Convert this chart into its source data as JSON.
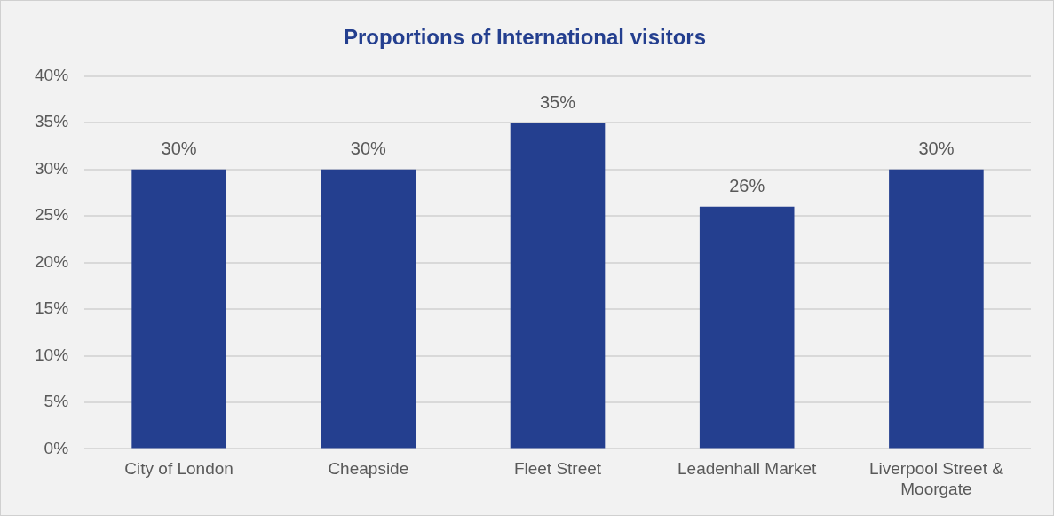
{
  "chart_data": {
    "type": "bar",
    "title": "Proportions of International visitors",
    "categories": [
      "City of London",
      "Cheapside",
      "Fleet Street",
      "Leadenhall Market",
      "Liverpool Street & Moorgate"
    ],
    "values": [
      30,
      30,
      35,
      26,
      30
    ],
    "value_labels": [
      "30%",
      "30%",
      "35%",
      "26%",
      "30%"
    ],
    "color": "#243f8f",
    "ylim": [
      0,
      40
    ],
    "yticks": [
      {
        "value": 0,
        "label": "0%"
      },
      {
        "value": 5,
        "label": "5%"
      },
      {
        "value": 10,
        "label": "10%"
      },
      {
        "value": 15,
        "label": "15%"
      },
      {
        "value": 20,
        "label": "20%"
      },
      {
        "value": 25,
        "label": "25%"
      },
      {
        "value": 30,
        "label": "30%"
      },
      {
        "value": 35,
        "label": "35%"
      },
      {
        "value": 40,
        "label": "40%"
      }
    ],
    "grid": "y",
    "legend": false
  }
}
